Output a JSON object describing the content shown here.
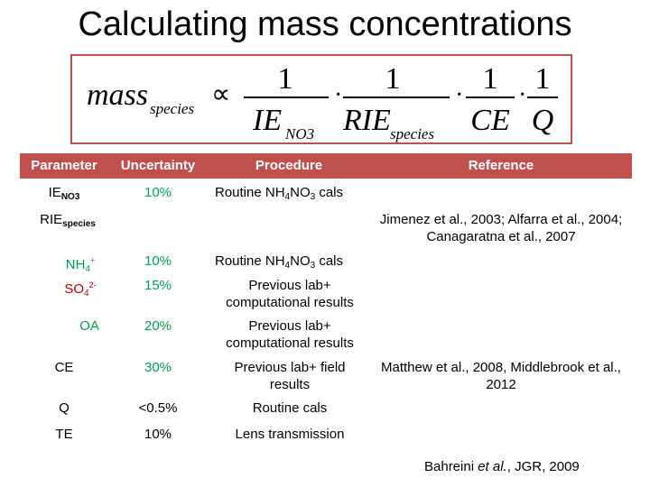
{
  "title": "Calculating mass concentrations",
  "formula": {
    "lhs_main": "mass",
    "lhs_sub": "species",
    "proportional": "∝",
    "one": "1",
    "dot": "·",
    "den1_main": "IE",
    "den1_sub": "NO3",
    "den2_main": "RIE",
    "den2_sub": "species",
    "den3": "CE",
    "den4": "Q"
  },
  "table": {
    "headers": {
      "parameter": "Parameter",
      "uncertainty": "Uncertainty",
      "procedure": "Procedure",
      "reference": "Reference"
    },
    "rows": {
      "ie": {
        "param_main": "IE",
        "param_sub": "NO3",
        "uncertainty": "10%",
        "proc_a": "Routine  NH",
        "proc_sub1": "4",
        "proc_b": "NO",
        "proc_sub2": "3",
        "proc_c": " cals"
      },
      "rie": {
        "param_main": "RIE",
        "param_sub": "species",
        "reference": "Jimenez et al., 2003; Alfarra et al., 2004; Canagaratna  et al., 2007"
      },
      "nh4": {
        "param_main": "NH",
        "param_sub": "4",
        "param_sup": "+",
        "uncertainty": "10%",
        "proc_a": "Routine  NH",
        "proc_sub1": "4",
        "proc_b": "NO",
        "proc_sub2": "3",
        "proc_c": " cals"
      },
      "so4": {
        "param_main": "SO",
        "param_sub": "4",
        "param_sup": "2-",
        "uncertainty": "15%",
        "procedure": "Previous lab+ computational results"
      },
      "oa": {
        "param": "OA",
        "uncertainty": "20%",
        "procedure": "Previous lab+ computational results"
      },
      "ce": {
        "param": "CE",
        "uncertainty": "30%",
        "procedure": "Previous lab+ field results",
        "reference": "Matthew et al., 2008, Middlebrook et al., 2012"
      },
      "q": {
        "param": "Q",
        "uncertainty": "<0.5%",
        "procedure": "Routine cals"
      },
      "te": {
        "param": "TE",
        "uncertainty": "10%",
        "procedure": "Lens transmission"
      }
    }
  },
  "citation": {
    "prefix": "Bahreini ",
    "etal": "et al.",
    "suffix": ", JGR, 2009"
  },
  "colors": {
    "header_bg": "#c0504d",
    "header_text": "#ffffff",
    "green_text": "#00a050",
    "box_border": "#c0504d"
  }
}
